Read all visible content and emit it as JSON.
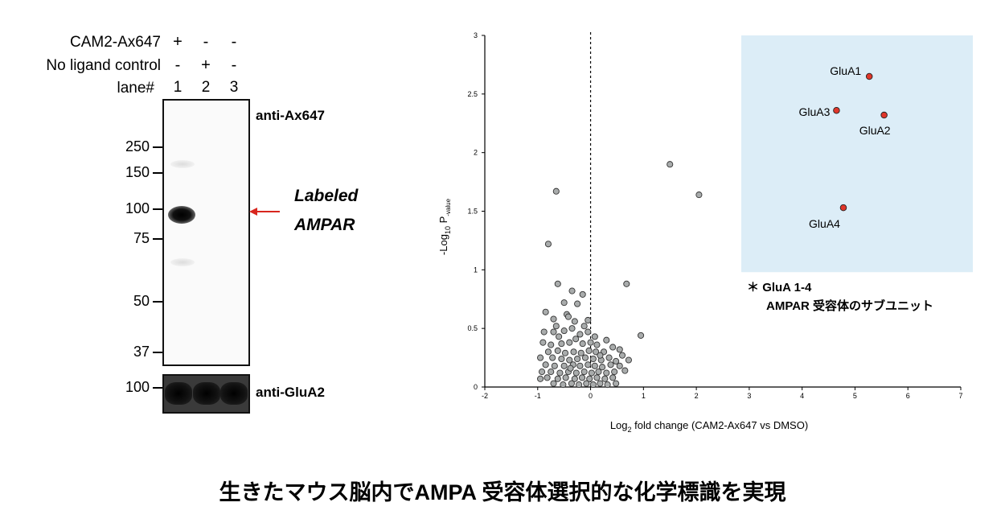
{
  "western_blot": {
    "conditions": [
      {
        "label": "CAM2-Ax647",
        "signs": [
          "+",
          "-",
          "-"
        ]
      },
      {
        "label": "No ligand control",
        "signs": [
          "-",
          "+",
          "-"
        ]
      }
    ],
    "lane_label": "lane#",
    "lanes": [
      "1",
      "2",
      "3"
    ],
    "mw_markers": [
      "250",
      "150",
      "100",
      "75",
      "50",
      "37"
    ],
    "blot_label": "anti-Ax647",
    "loading_mw": "100",
    "loading_label": "anti-GluA2",
    "arrow_label_line1": "Labeled",
    "arrow_label_line2": "AMPAR",
    "arrow_color": "#d8261e"
  },
  "chart_data": {
    "type": "scatter",
    "title": "",
    "xlabel_main": "Log",
    "xlabel_sub": "2",
    "xlabel_rest": " fold change (CAM2-Ax647 vs DMSO)",
    "ylabel_main": "-Log",
    "ylabel_sub": "10",
    "ylabel_p": " P",
    "ylabel_psub": "-value",
    "xlim": [
      -2,
      7
    ],
    "ylim": [
      0,
      3
    ],
    "xticks": [
      "-2",
      "-1",
      "0",
      "1",
      "2",
      "3",
      "4",
      "5",
      "6",
      "7"
    ],
    "yticks": [
      "0",
      "0.5",
      "1",
      "1.5",
      "2",
      "2.5",
      "3"
    ],
    "highlight_region": {
      "x": [
        2.85,
        7.25
      ],
      "y": [
        0.98,
        3.0
      ],
      "color": "#dcedf7"
    },
    "zero_line": "dashed",
    "point_color_background": "#a9acac",
    "point_color_highlight": "#e0362a",
    "highlight_points": [
      {
        "x": 5.27,
        "y": 2.65,
        "label": "GluA1"
      },
      {
        "x": 4.65,
        "y": 2.36,
        "label": "GluA3"
      },
      {
        "x": 5.55,
        "y": 2.32,
        "label": "GluA2"
      },
      {
        "x": 4.78,
        "y": 1.53,
        "label": "GluA4"
      }
    ],
    "background_points": [
      [
        1.5,
        1.9
      ],
      [
        2.05,
        1.64
      ],
      [
        -0.65,
        1.67
      ],
      [
        -0.8,
        1.22
      ],
      [
        0.68,
        0.88
      ],
      [
        0.95,
        0.44
      ],
      [
        -0.62,
        0.88
      ],
      [
        -0.35,
        0.82
      ],
      [
        -0.15,
        0.79
      ],
      [
        -0.5,
        0.72
      ],
      [
        -0.25,
        0.71
      ],
      [
        -0.85,
        0.64
      ],
      [
        -0.45,
        0.62
      ],
      [
        -0.05,
        0.57
      ],
      [
        -0.7,
        0.58
      ],
      [
        -0.3,
        0.56
      ],
      [
        -0.88,
        0.47
      ],
      [
        -0.7,
        0.47
      ],
      [
        -0.5,
        0.48
      ],
      [
        -0.35,
        0.5
      ],
      [
        -0.2,
        0.45
      ],
      [
        -0.05,
        0.47
      ],
      [
        -0.6,
        0.43
      ],
      [
        -0.28,
        0.41
      ],
      [
        0.08,
        0.43
      ],
      [
        -0.9,
        0.38
      ],
      [
        -0.75,
        0.36
      ],
      [
        -0.55,
        0.37
      ],
      [
        -0.4,
        0.38
      ],
      [
        -0.15,
        0.37
      ],
      [
        0.0,
        0.38
      ],
      [
        0.12,
        0.36
      ],
      [
        0.3,
        0.4
      ],
      [
        0.42,
        0.34
      ],
      [
        -0.8,
        0.3
      ],
      [
        -0.62,
        0.31
      ],
      [
        -0.48,
        0.29
      ],
      [
        -0.32,
        0.3
      ],
      [
        -0.18,
        0.29
      ],
      [
        -0.03,
        0.31
      ],
      [
        0.1,
        0.3
      ],
      [
        0.25,
        0.3
      ],
      [
        0.55,
        0.32
      ],
      [
        -0.95,
        0.25
      ],
      [
        -0.72,
        0.25
      ],
      [
        -0.55,
        0.24
      ],
      [
        -0.4,
        0.23
      ],
      [
        -0.25,
        0.24
      ],
      [
        -0.1,
        0.25
      ],
      [
        0.05,
        0.24
      ],
      [
        0.2,
        0.23
      ],
      [
        0.35,
        0.25
      ],
      [
        0.48,
        0.22
      ],
      [
        0.72,
        0.23
      ],
      [
        -0.85,
        0.19
      ],
      [
        -0.68,
        0.18
      ],
      [
        -0.5,
        0.18
      ],
      [
        -0.33,
        0.19
      ],
      [
        -0.2,
        0.18
      ],
      [
        -0.05,
        0.19
      ],
      [
        0.08,
        0.18
      ],
      [
        0.22,
        0.17
      ],
      [
        0.38,
        0.19
      ],
      [
        0.55,
        0.18
      ],
      [
        -0.92,
        0.13
      ],
      [
        -0.75,
        0.13
      ],
      [
        -0.58,
        0.12
      ],
      [
        -0.42,
        0.13
      ],
      [
        -0.27,
        0.12
      ],
      [
        -0.12,
        0.13
      ],
      [
        0.02,
        0.12
      ],
      [
        0.15,
        0.13
      ],
      [
        0.3,
        0.12
      ],
      [
        0.45,
        0.13
      ],
      [
        0.65,
        0.14
      ],
      [
        -0.82,
        0.08
      ],
      [
        -0.62,
        0.07
      ],
      [
        -0.47,
        0.08
      ],
      [
        -0.3,
        0.07
      ],
      [
        -0.16,
        0.08
      ],
      [
        -0.02,
        0.07
      ],
      [
        0.12,
        0.08
      ],
      [
        0.27,
        0.07
      ],
      [
        0.42,
        0.08
      ],
      [
        -0.95,
        0.07
      ],
      [
        -0.7,
        0.03
      ],
      [
        -0.52,
        0.02
      ],
      [
        -0.36,
        0.03
      ],
      [
        -0.22,
        0.02
      ],
      [
        -0.08,
        0.03
      ],
      [
        0.05,
        0.02
      ],
      [
        0.18,
        0.03
      ],
      [
        0.32,
        0.02
      ],
      [
        0.48,
        0.03
      ],
      [
        -0.42,
        0.6
      ],
      [
        -0.12,
        0.52
      ],
      [
        -0.65,
        0.52
      ],
      [
        0.18,
        0.27
      ],
      [
        -0.38,
        0.16
      ],
      [
        0.6,
        0.27
      ]
    ]
  },
  "annotation": {
    "star": "＊",
    "line1": "GluA 1-4",
    "line2": "AMPAR 受容体のサブユニット"
  },
  "caption": "生きたマウス脳内でAMPA 受容体選択的な化学標識を実現"
}
